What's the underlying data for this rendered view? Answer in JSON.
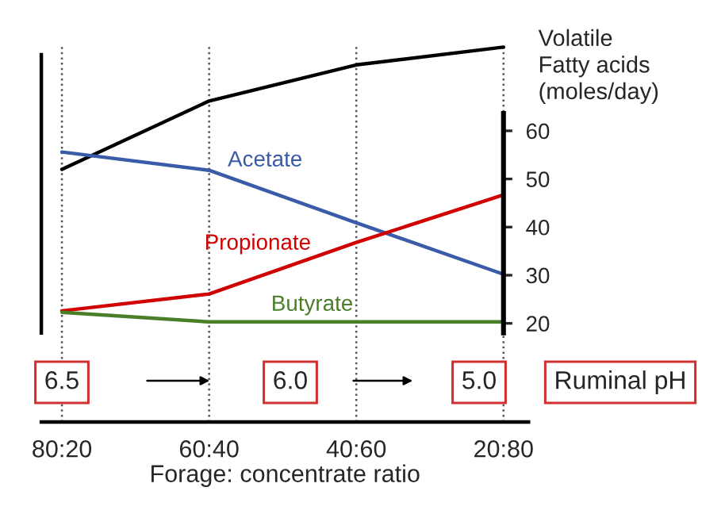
{
  "chart_data": {
    "type": "line",
    "xlabel": "Forage: concentrate ratio",
    "ylabel": "Volatile Fatty acids (moles/day)",
    "categories": [
      "80:20",
      "60:40",
      "40:60",
      "20:80"
    ],
    "ylim": [
      -0.5,
      78
    ],
    "yticks": [
      20,
      30,
      40,
      50,
      60
    ],
    "grid": "x",
    "legend": false,
    "marker": "none",
    "line_style": "solid",
    "series": [
      {
        "color": "#000000",
        "values": [
          52,
          66.2,
          73.7,
          77.4
        ]
      },
      {
        "name": "Acetate",
        "color": "#3a5ca8",
        "values": [
          55.6,
          51.8,
          40.9,
          30.2
        ]
      },
      {
        "name": "Propionate",
        "color": "#d00000",
        "values": [
          22.6,
          26.1,
          36.8,
          46.7
        ]
      },
      {
        "name": "Butyrate",
        "color": "#4a7f2a",
        "values": [
          22.3,
          20.3,
          20.3,
          20.3
        ]
      }
    ],
    "annotations": [
      "6.5",
      "6.0",
      "5.0",
      "Ruminal pH"
    ]
  }
}
